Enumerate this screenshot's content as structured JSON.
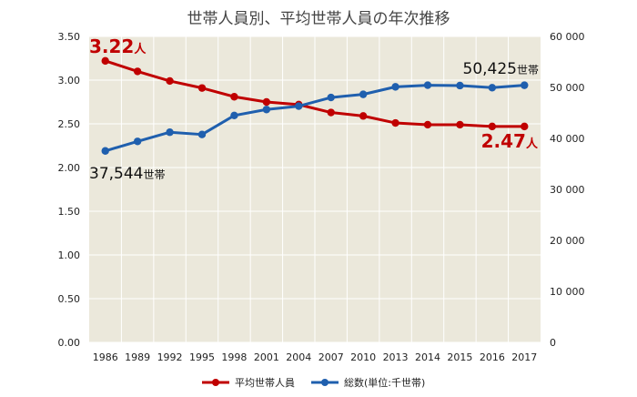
{
  "chart_data": {
    "type": "line",
    "title": "世帯人員別、平均世帯人員の年次推移",
    "categories": [
      "1986",
      "1989",
      "1992",
      "1995",
      "1998",
      "2001",
      "2004",
      "2007",
      "2010",
      "2013",
      "2014",
      "2015",
      "2016",
      "2017"
    ],
    "y_left": {
      "range": [
        0,
        3.5
      ],
      "ticks": [
        "0.00",
        "0.50",
        "1.00",
        "1.50",
        "2.00",
        "2.50",
        "3.00",
        "3.50"
      ]
    },
    "y_right": {
      "range": [
        0,
        60000
      ],
      "ticks": [
        "0",
        "10 000",
        "20 000",
        "30 000",
        "40 000",
        "50 000",
        "60 000"
      ]
    },
    "grid": true,
    "legend_position": "bottom",
    "series": [
      {
        "name": "平均世帯人員",
        "axis": "left",
        "color": "#c00000",
        "values": [
          3.22,
          3.1,
          2.99,
          2.91,
          2.81,
          2.75,
          2.72,
          2.63,
          2.59,
          2.51,
          2.49,
          2.49,
          2.47,
          2.47
        ]
      },
      {
        "name": "総数(単位:千世帯)",
        "axis": "right",
        "color": "#1f5fae",
        "values": [
          37544,
          39417,
          41210,
          40770,
          44496,
          45664,
          46323,
          48023,
          48638,
          50112,
          50431,
          50361,
          49945,
          50425
        ]
      }
    ],
    "annotations": {
      "first_avg": {
        "number": "3.22",
        "unit": "人"
      },
      "last_avg": {
        "number": "2.47",
        "unit": "人"
      },
      "first_total": {
        "number": "37,544",
        "unit": "世帯"
      },
      "last_total": {
        "number": "50,425",
        "unit": "世帯"
      }
    }
  }
}
